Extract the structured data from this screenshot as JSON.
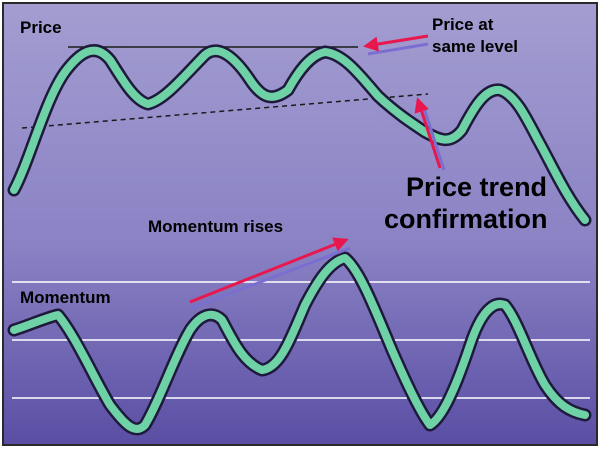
{
  "labels": {
    "price": "Price",
    "price_same_level_line1": "Price at",
    "price_same_level_line2": "same level",
    "price_trend_line1": "Price trend",
    "price_trend_line2": "confirmation",
    "momentum_rises": "Momentum rises",
    "momentum": "Momentum"
  },
  "colors": {
    "background_top": "#a6a0d3",
    "background_bottom": "#5a4ea4",
    "curve_fill": "#6fd1a6",
    "curve_outline": "#1f1a3d",
    "arrow_red": "#e8184f",
    "arrow_shadow": "#7a6fd0",
    "guide_line": "#ffffff",
    "trend_line": "#1a1a1a"
  }
}
